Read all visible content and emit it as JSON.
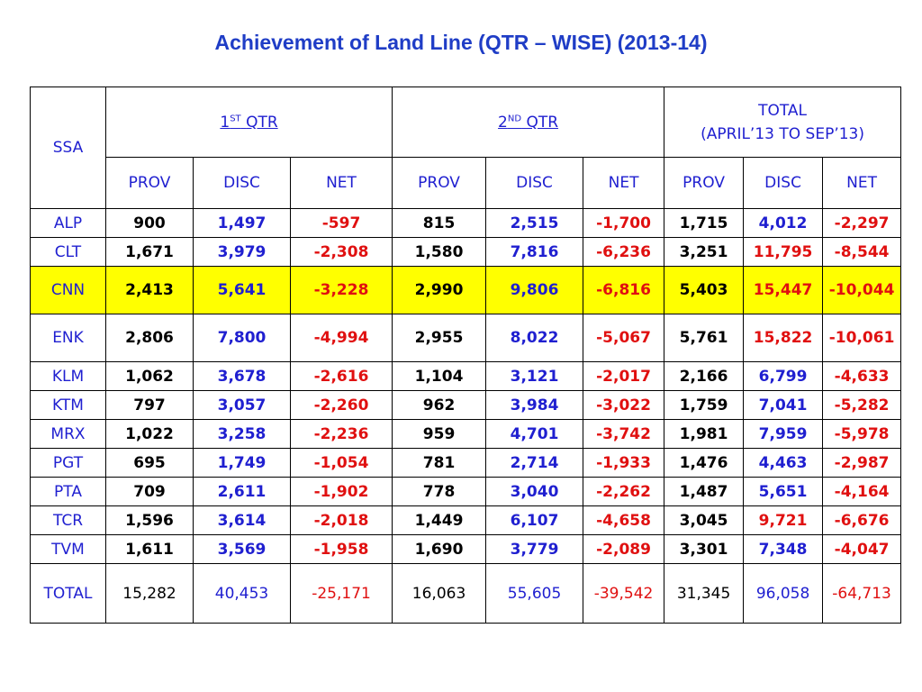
{
  "title": "Achievement of Land Line (QTR – WISE)  (2013-14)",
  "header": {
    "ssa": "SSA",
    "q1": {
      "num": "1",
      "sup": "ST",
      "label": "QTR"
    },
    "q2": {
      "num": "2",
      "sup": "ND",
      "label": "QTR"
    },
    "total_line1": "TOTAL",
    "total_line2": "(APRIL’13 TO SEP’13)",
    "sub": [
      "PROV",
      "DISC",
      "NET",
      "PROV",
      "DISC",
      "NET",
      "PROV",
      "DISC",
      "NET"
    ]
  },
  "rows": [
    {
      "ssa": "ALP",
      "v": [
        "900",
        "1,497",
        "-597",
        "815",
        "2,515",
        "-1,700",
        "1,715",
        "4,012",
        "-2,297"
      ]
    },
    {
      "ssa": "CLT",
      "v": [
        "1,671",
        "3,979",
        "-2,308",
        "1,580",
        "7,816",
        "-6,236",
        "3,251",
        "11,795",
        "-8,544"
      ]
    },
    {
      "ssa": "CNN",
      "v": [
        "2,413",
        "5,641",
        "-3,228",
        "2,990",
        "9,806",
        "-6,816",
        "5,403",
        "15,447",
        "-10,044"
      ]
    },
    {
      "ssa": "ENK",
      "v": [
        "2,806",
        "7,800",
        "-4,994",
        "2,955",
        "8,022",
        "-5,067",
        "5,761",
        "15,822",
        "-10,061"
      ]
    },
    {
      "ssa": "KLM",
      "v": [
        "1,062",
        "3,678",
        "-2,616",
        "1,104",
        "3,121",
        "-2,017",
        "2,166",
        "6,799",
        "-4,633"
      ]
    },
    {
      "ssa": "KTM",
      "v": [
        "797",
        "3,057",
        "-2,260",
        "962",
        "3,984",
        "-3,022",
        "1,759",
        "7,041",
        "-5,282"
      ]
    },
    {
      "ssa": "MRX",
      "v": [
        "1,022",
        "3,258",
        "-2,236",
        "959",
        "4,701",
        "-3,742",
        "1,981",
        "7,959",
        "-5,978"
      ]
    },
    {
      "ssa": "PGT",
      "v": [
        "695",
        "1,749",
        "-1,054",
        "781",
        "2,714",
        "-1,933",
        "1,476",
        "4,463",
        "-2,987"
      ]
    },
    {
      "ssa": "PTA",
      "v": [
        "709",
        "2,611",
        "-1,902",
        "778",
        "3,040",
        "-2,262",
        "1,487",
        "5,651",
        "-4,164"
      ]
    },
    {
      "ssa": "TCR",
      "v": [
        "1,596",
        "3,614",
        "-2,018",
        "1,449",
        "6,107",
        "-4,658",
        "3,045",
        "9,721",
        "-6,676"
      ]
    },
    {
      "ssa": "TVM",
      "v": [
        "1,611",
        "3,569",
        "-1,958",
        "1,690",
        "3,779",
        "-2,089",
        "3,301",
        "7,348",
        "-4,047"
      ]
    },
    {
      "ssa": "TOTAL",
      "v": [
        "15,282",
        "40,453",
        "-25,171",
        "16,063",
        "55,605",
        "-39,542",
        "31,345",
        "96,058",
        "-64,713"
      ]
    }
  ],
  "colors": {
    "title": "#1f3dc6",
    "blue": "#1f1fd0",
    "red": "#e01010",
    "highlight": "#ffff00"
  }
}
